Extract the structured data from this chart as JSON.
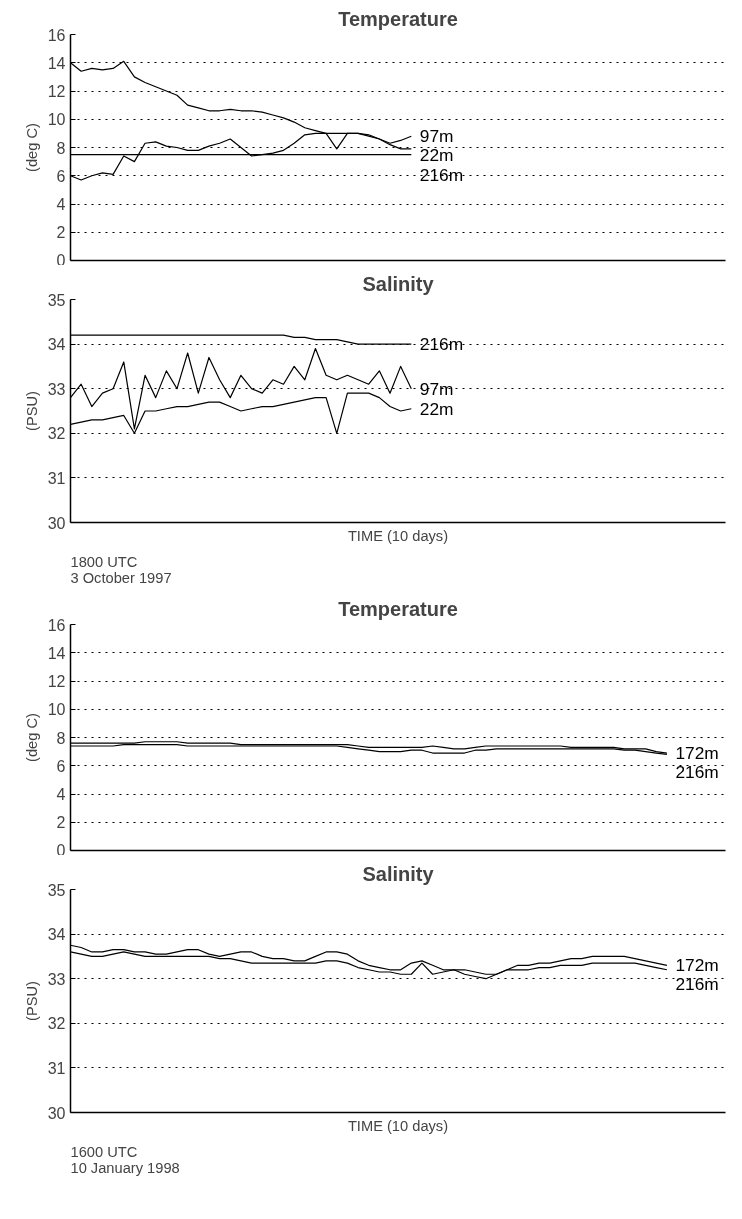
{
  "chart_data": [
    {
      "type": "line",
      "title": "Temperature",
      "ylabel": "(deg C)",
      "ylim": [
        0,
        16
      ],
      "yticks": [
        0,
        2,
        4,
        6,
        8,
        10,
        12,
        14,
        16
      ],
      "tick_labels": "y",
      "grid": "y",
      "categories": [
        null,
        null,
        null,
        null,
        null,
        null,
        null,
        null,
        null,
        null,
        null,
        null,
        null,
        null,
        null,
        null,
        null,
        null,
        null,
        null,
        null,
        null,
        null,
        null,
        null,
        null,
        null,
        null,
        null,
        null,
        null,
        null,
        null,
        null,
        null,
        null,
        null,
        null,
        null,
        null,
        null,
        null,
        null,
        null,
        null,
        null,
        null,
        null,
        null,
        null,
        null,
        null,
        null,
        null,
        null,
        null,
        null,
        null,
        null,
        null,
        null,
        null
      ],
      "series": [
        {
          "name": "22m",
          "color": "#000000",
          "values": [
            14.0,
            13.4,
            13.6,
            13.5,
            13.6,
            14.1,
            13.0,
            12.6,
            12.3,
            12.0,
            11.7,
            11.0,
            10.8,
            10.6,
            10.6,
            10.7,
            10.6,
            10.6,
            10.5,
            10.3,
            10.1,
            9.8,
            9.4,
            9.2,
            9.0,
            9.0,
            9.0,
            9.0,
            8.9,
            8.6,
            8.2,
            7.9,
            7.9,
            null,
            null,
            null,
            null,
            null,
            null,
            null,
            null,
            null,
            null,
            null,
            null,
            null,
            null,
            null,
            null,
            null,
            null,
            null,
            null,
            null,
            null,
            null,
            null,
            null,
            null,
            null,
            null,
            null
          ]
        },
        {
          "name": "97m",
          "color": "#000000",
          "values": [
            6.0,
            5.7,
            6.0,
            6.2,
            6.1,
            7.4,
            7.0,
            8.3,
            8.4,
            8.1,
            8.0,
            7.8,
            7.8,
            8.1,
            8.3,
            8.6,
            8.0,
            7.4,
            7.5,
            7.6,
            7.8,
            8.3,
            8.9,
            9.0,
            9.0,
            7.9,
            9.0,
            9.0,
            8.8,
            8.6,
            8.3,
            8.5,
            8.8,
            null,
            null,
            null,
            null,
            null,
            null,
            null,
            null,
            null,
            null,
            null,
            null,
            null,
            null,
            null,
            null,
            null,
            null,
            null,
            null,
            null,
            null,
            null,
            null,
            null,
            null,
            null,
            null,
            null
          ]
        },
        {
          "name": "216m",
          "color": "#000000",
          "values": [
            7.5,
            7.5,
            7.5,
            7.5,
            7.5,
            7.5,
            7.5,
            7.5,
            7.5,
            7.5,
            7.5,
            7.5,
            7.5,
            7.5,
            7.5,
            7.5,
            7.5,
            7.5,
            7.5,
            7.5,
            7.5,
            7.5,
            7.5,
            7.5,
            7.5,
            7.5,
            7.5,
            7.5,
            7.5,
            7.5,
            7.5,
            7.5,
            7.5,
            null,
            null,
            null,
            null,
            null,
            null,
            null,
            null,
            null,
            null,
            null,
            null,
            null,
            null,
            null,
            null,
            null,
            null,
            null,
            null,
            null,
            null,
            null,
            null,
            null,
            null,
            null,
            null,
            null
          ]
        }
      ]
    },
    {
      "type": "line",
      "title": "Salinity",
      "ylabel": "(PSU)",
      "xlabel": "TIME (10 days)",
      "ylim": [
        30,
        35
      ],
      "yticks": [
        30,
        31,
        32,
        33,
        34,
        35
      ],
      "tick_labels": "y",
      "grid": "y",
      "annotations": [
        "1800 UTC\n3 October 1997"
      ],
      "categories": [
        null,
        null,
        null,
        null,
        null,
        null,
        null,
        null,
        null,
        null,
        null,
        null,
        null,
        null,
        null,
        null,
        null,
        null,
        null,
        null,
        null,
        null,
        null,
        null,
        null,
        null,
        null,
        null,
        null,
        null,
        null,
        null,
        null,
        null,
        null,
        null,
        null,
        null,
        null,
        null,
        null,
        null,
        null,
        null,
        null,
        null,
        null,
        null,
        null,
        null,
        null,
        null,
        null,
        null,
        null,
        null,
        null,
        null,
        null,
        null,
        null,
        null
      ],
      "series": [
        {
          "name": "216m",
          "color": "#000000",
          "values": [
            34.2,
            34.2,
            34.2,
            34.2,
            34.2,
            34.2,
            34.2,
            34.2,
            34.2,
            34.2,
            34.2,
            34.2,
            34.2,
            34.2,
            34.2,
            34.2,
            34.2,
            34.2,
            34.2,
            34.2,
            34.2,
            34.15,
            34.15,
            34.1,
            34.1,
            34.1,
            34.05,
            34.0,
            34.0,
            34.0,
            34.0,
            34.0,
            34.0,
            null,
            null,
            null,
            null,
            null,
            null,
            null,
            null,
            null,
            null,
            null,
            null,
            null,
            null,
            null,
            null,
            null,
            null,
            null,
            null,
            null,
            null,
            null,
            null,
            null,
            null,
            null,
            null,
            null
          ]
        },
        {
          "name": "97m",
          "color": "#000000",
          "values": [
            32.8,
            33.1,
            32.6,
            32.9,
            33.0,
            33.6,
            32.1,
            33.3,
            32.8,
            33.4,
            33.0,
            33.8,
            32.9,
            33.7,
            33.2,
            32.8,
            33.3,
            33.0,
            32.9,
            33.2,
            33.1,
            33.5,
            33.2,
            33.9,
            33.3,
            33.2,
            33.3,
            33.2,
            33.1,
            33.4,
            32.9,
            33.5,
            33.0,
            null,
            null,
            null,
            null,
            null,
            null,
            null,
            null,
            null,
            null,
            null,
            null,
            null,
            null,
            null,
            null,
            null,
            null,
            null,
            null,
            null,
            null,
            null,
            null,
            null,
            null,
            null,
            null,
            null
          ]
        },
        {
          "name": "22m",
          "color": "#000000",
          "values": [
            32.2,
            32.25,
            32.3,
            32.3,
            32.35,
            32.4,
            32.0,
            32.5,
            32.5,
            32.55,
            32.6,
            32.6,
            32.65,
            32.7,
            32.7,
            32.6,
            32.5,
            32.55,
            32.6,
            32.6,
            32.65,
            32.7,
            32.75,
            32.8,
            32.8,
            32.0,
            32.9,
            32.9,
            32.9,
            32.8,
            32.6,
            32.5,
            32.55,
            null,
            null,
            null,
            null,
            null,
            null,
            null,
            null,
            null,
            null,
            null,
            null,
            null,
            null,
            null,
            null,
            null,
            null,
            null,
            null,
            null,
            null,
            null,
            null,
            null,
            null,
            null,
            null,
            null
          ]
        }
      ]
    },
    {
      "type": "line",
      "title": "Temperature",
      "ylabel": "(deg C)",
      "ylim": [
        0,
        16
      ],
      "yticks": [
        0,
        2,
        4,
        6,
        8,
        10,
        12,
        14,
        16
      ],
      "tick_labels": "y",
      "grid": "y",
      "categories": [
        null,
        null,
        null,
        null,
        null,
        null,
        null,
        null,
        null,
        null,
        null,
        null,
        null,
        null,
        null,
        null,
        null,
        null,
        null,
        null,
        null,
        null,
        null,
        null,
        null,
        null,
        null,
        null,
        null,
        null,
        null,
        null,
        null,
        null,
        null,
        null,
        null,
        null,
        null,
        null,
        null,
        null,
        null,
        null,
        null,
        null,
        null,
        null,
        null,
        null,
        null,
        null,
        null,
        null,
        null,
        null,
        null,
        null,
        null,
        null,
        null,
        null
      ],
      "series": [
        {
          "name": "172m",
          "color": "#000000",
          "values": [
            7.6,
            7.6,
            7.6,
            7.6,
            7.6,
            7.6,
            7.6,
            7.7,
            7.7,
            7.7,
            7.7,
            7.6,
            7.6,
            7.6,
            7.6,
            7.6,
            7.5,
            7.5,
            7.5,
            7.5,
            7.5,
            7.5,
            7.5,
            7.5,
            7.5,
            7.5,
            7.5,
            7.4,
            7.3,
            7.3,
            7.3,
            7.3,
            7.3,
            7.3,
            7.4,
            7.3,
            7.2,
            7.2,
            7.3,
            7.4,
            7.4,
            7.4,
            7.4,
            7.4,
            7.4,
            7.4,
            7.4,
            7.3,
            7.3,
            7.3,
            7.3,
            7.3,
            7.2,
            7.2,
            7.2,
            7.0,
            6.9,
            null,
            null,
            null,
            null,
            null
          ]
        },
        {
          "name": "216m",
          "color": "#000000",
          "values": [
            7.4,
            7.4,
            7.4,
            7.4,
            7.4,
            7.5,
            7.5,
            7.5,
            7.5,
            7.5,
            7.5,
            7.4,
            7.4,
            7.4,
            7.4,
            7.4,
            7.4,
            7.4,
            7.4,
            7.4,
            7.4,
            7.4,
            7.4,
            7.4,
            7.4,
            7.4,
            7.3,
            7.2,
            7.1,
            7.0,
            7.0,
            7.0,
            7.1,
            7.1,
            6.9,
            6.9,
            6.9,
            6.9,
            7.1,
            7.1,
            7.2,
            7.2,
            7.2,
            7.2,
            7.2,
            7.2,
            7.2,
            7.2,
            7.2,
            7.2,
            7.2,
            7.2,
            7.1,
            7.1,
            7.0,
            6.9,
            6.8,
            null,
            null,
            null,
            null,
            null
          ]
        }
      ]
    },
    {
      "type": "line",
      "title": "Salinity",
      "ylabel": "(PSU)",
      "xlabel": "TIME (10 days)",
      "ylim": [
        30,
        35
      ],
      "yticks": [
        30,
        31,
        32,
        33,
        34,
        35
      ],
      "tick_labels": "y",
      "grid": "y",
      "annotations": [
        "1600 UTC\n10 January 1998"
      ],
      "categories": [
        null,
        null,
        null,
        null,
        null,
        null,
        null,
        null,
        null,
        null,
        null,
        null,
        null,
        null,
        null,
        null,
        null,
        null,
        null,
        null,
        null,
        null,
        null,
        null,
        null,
        null,
        null,
        null,
        null,
        null,
        null,
        null,
        null,
        null,
        null,
        null,
        null,
        null,
        null,
        null,
        null,
        null,
        null,
        null,
        null,
        null,
        null,
        null,
        null,
        null,
        null,
        null,
        null,
        null,
        null,
        null,
        null,
        null,
        null,
        null,
        null,
        null
      ],
      "series": [
        {
          "name": "172m",
          "color": "#000000",
          "values": [
            33.75,
            33.7,
            33.6,
            33.6,
            33.65,
            33.65,
            33.6,
            33.6,
            33.55,
            33.55,
            33.6,
            33.65,
            33.65,
            33.55,
            33.5,
            33.55,
            33.6,
            33.6,
            33.5,
            33.45,
            33.45,
            33.4,
            33.4,
            33.5,
            33.6,
            33.6,
            33.55,
            33.4,
            33.3,
            33.25,
            33.2,
            33.2,
            33.35,
            33.4,
            33.3,
            33.2,
            33.2,
            33.2,
            33.15,
            33.1,
            33.1,
            33.2,
            33.3,
            33.3,
            33.35,
            33.35,
            33.4,
            33.45,
            33.45,
            33.5,
            33.5,
            33.5,
            33.5,
            33.45,
            33.4,
            33.35,
            33.3,
            null,
            null,
            null,
            null,
            null
          ]
        },
        {
          "name": "216m",
          "color": "#000000",
          "values": [
            33.6,
            33.55,
            33.5,
            33.5,
            33.55,
            33.6,
            33.55,
            33.5,
            33.5,
            33.5,
            33.5,
            33.5,
            33.5,
            33.5,
            33.45,
            33.45,
            33.4,
            33.35,
            33.35,
            33.35,
            33.35,
            33.35,
            33.35,
            33.35,
            33.4,
            33.4,
            33.35,
            33.25,
            33.2,
            33.15,
            33.15,
            33.1,
            33.1,
            33.35,
            33.1,
            33.15,
            33.2,
            33.1,
            33.05,
            33.0,
            33.1,
            33.2,
            33.2,
            33.2,
            33.25,
            33.25,
            33.3,
            33.3,
            33.3,
            33.35,
            33.35,
            33.35,
            33.35,
            33.35,
            33.3,
            33.25,
            33.2,
            null,
            null,
            null,
            null,
            null
          ]
        }
      ]
    }
  ]
}
